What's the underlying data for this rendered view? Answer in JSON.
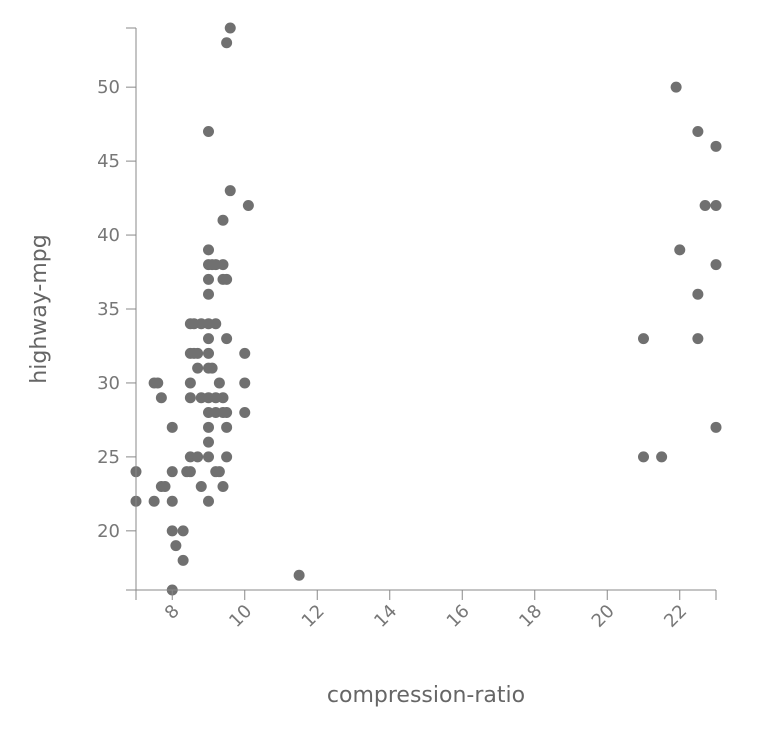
{
  "chart_data": {
    "type": "scatter",
    "xlabel": "compression-ratio",
    "ylabel": "highway-mpg",
    "xlim": [
      7,
      23
    ],
    "ylim": [
      16,
      54
    ],
    "x_ticks": [
      8,
      10,
      12,
      14,
      16,
      18,
      20,
      22
    ],
    "y_ticks": [
      20,
      25,
      30,
      35,
      40,
      45,
      50
    ],
    "grid": false,
    "point_color": "#707070",
    "points": [
      [
        7.0,
        24
      ],
      [
        7.0,
        22
      ],
      [
        7.5,
        22
      ],
      [
        7.5,
        30
      ],
      [
        7.6,
        30
      ],
      [
        7.7,
        29
      ],
      [
        7.7,
        23
      ],
      [
        7.8,
        23
      ],
      [
        8.0,
        27
      ],
      [
        8.0,
        24
      ],
      [
        8.0,
        22
      ],
      [
        8.0,
        20
      ],
      [
        8.0,
        16
      ],
      [
        8.1,
        19
      ],
      [
        8.3,
        20
      ],
      [
        8.3,
        18
      ],
      [
        8.4,
        24
      ],
      [
        8.5,
        24
      ],
      [
        8.5,
        25
      ],
      [
        8.5,
        29
      ],
      [
        8.5,
        30
      ],
      [
        8.5,
        32
      ],
      [
        8.5,
        34
      ],
      [
        8.6,
        32
      ],
      [
        8.6,
        34
      ],
      [
        8.7,
        25
      ],
      [
        8.7,
        31
      ],
      [
        8.7,
        32
      ],
      [
        8.8,
        34
      ],
      [
        8.8,
        29
      ],
      [
        8.8,
        23
      ],
      [
        9.0,
        47
      ],
      [
        9.0,
        39
      ],
      [
        9.0,
        38
      ],
      [
        9.0,
        37
      ],
      [
        9.0,
        36
      ],
      [
        9.0,
        34
      ],
      [
        9.0,
        33
      ],
      [
        9.0,
        32
      ],
      [
        9.0,
        31
      ],
      [
        9.0,
        29
      ],
      [
        9.0,
        28
      ],
      [
        9.0,
        27
      ],
      [
        9.0,
        26
      ],
      [
        9.0,
        25
      ],
      [
        9.0,
        22
      ],
      [
        9.1,
        38
      ],
      [
        9.1,
        31
      ],
      [
        9.2,
        38
      ],
      [
        9.2,
        34
      ],
      [
        9.2,
        29
      ],
      [
        9.2,
        28
      ],
      [
        9.2,
        24
      ],
      [
        9.3,
        30
      ],
      [
        9.3,
        24
      ],
      [
        9.4,
        38
      ],
      [
        9.4,
        37
      ],
      [
        9.4,
        29
      ],
      [
        9.4,
        28
      ],
      [
        9.4,
        23
      ],
      [
        9.4,
        41
      ],
      [
        9.5,
        53
      ],
      [
        9.5,
        37
      ],
      [
        9.5,
        33
      ],
      [
        9.5,
        28
      ],
      [
        9.5,
        27
      ],
      [
        9.5,
        25
      ],
      [
        9.6,
        54
      ],
      [
        9.6,
        43
      ],
      [
        10.0,
        32
      ],
      [
        10.0,
        30
      ],
      [
        10.0,
        28
      ],
      [
        10.1,
        42
      ],
      [
        11.5,
        17
      ],
      [
        21.0,
        33
      ],
      [
        21.0,
        25
      ],
      [
        21.5,
        25
      ],
      [
        21.9,
        50
      ],
      [
        22.0,
        39
      ],
      [
        22.5,
        47
      ],
      [
        22.5,
        36
      ],
      [
        22.5,
        33
      ],
      [
        22.7,
        42
      ],
      [
        23.0,
        46
      ],
      [
        23.0,
        42
      ],
      [
        23.0,
        38
      ],
      [
        23.0,
        27
      ]
    ]
  }
}
